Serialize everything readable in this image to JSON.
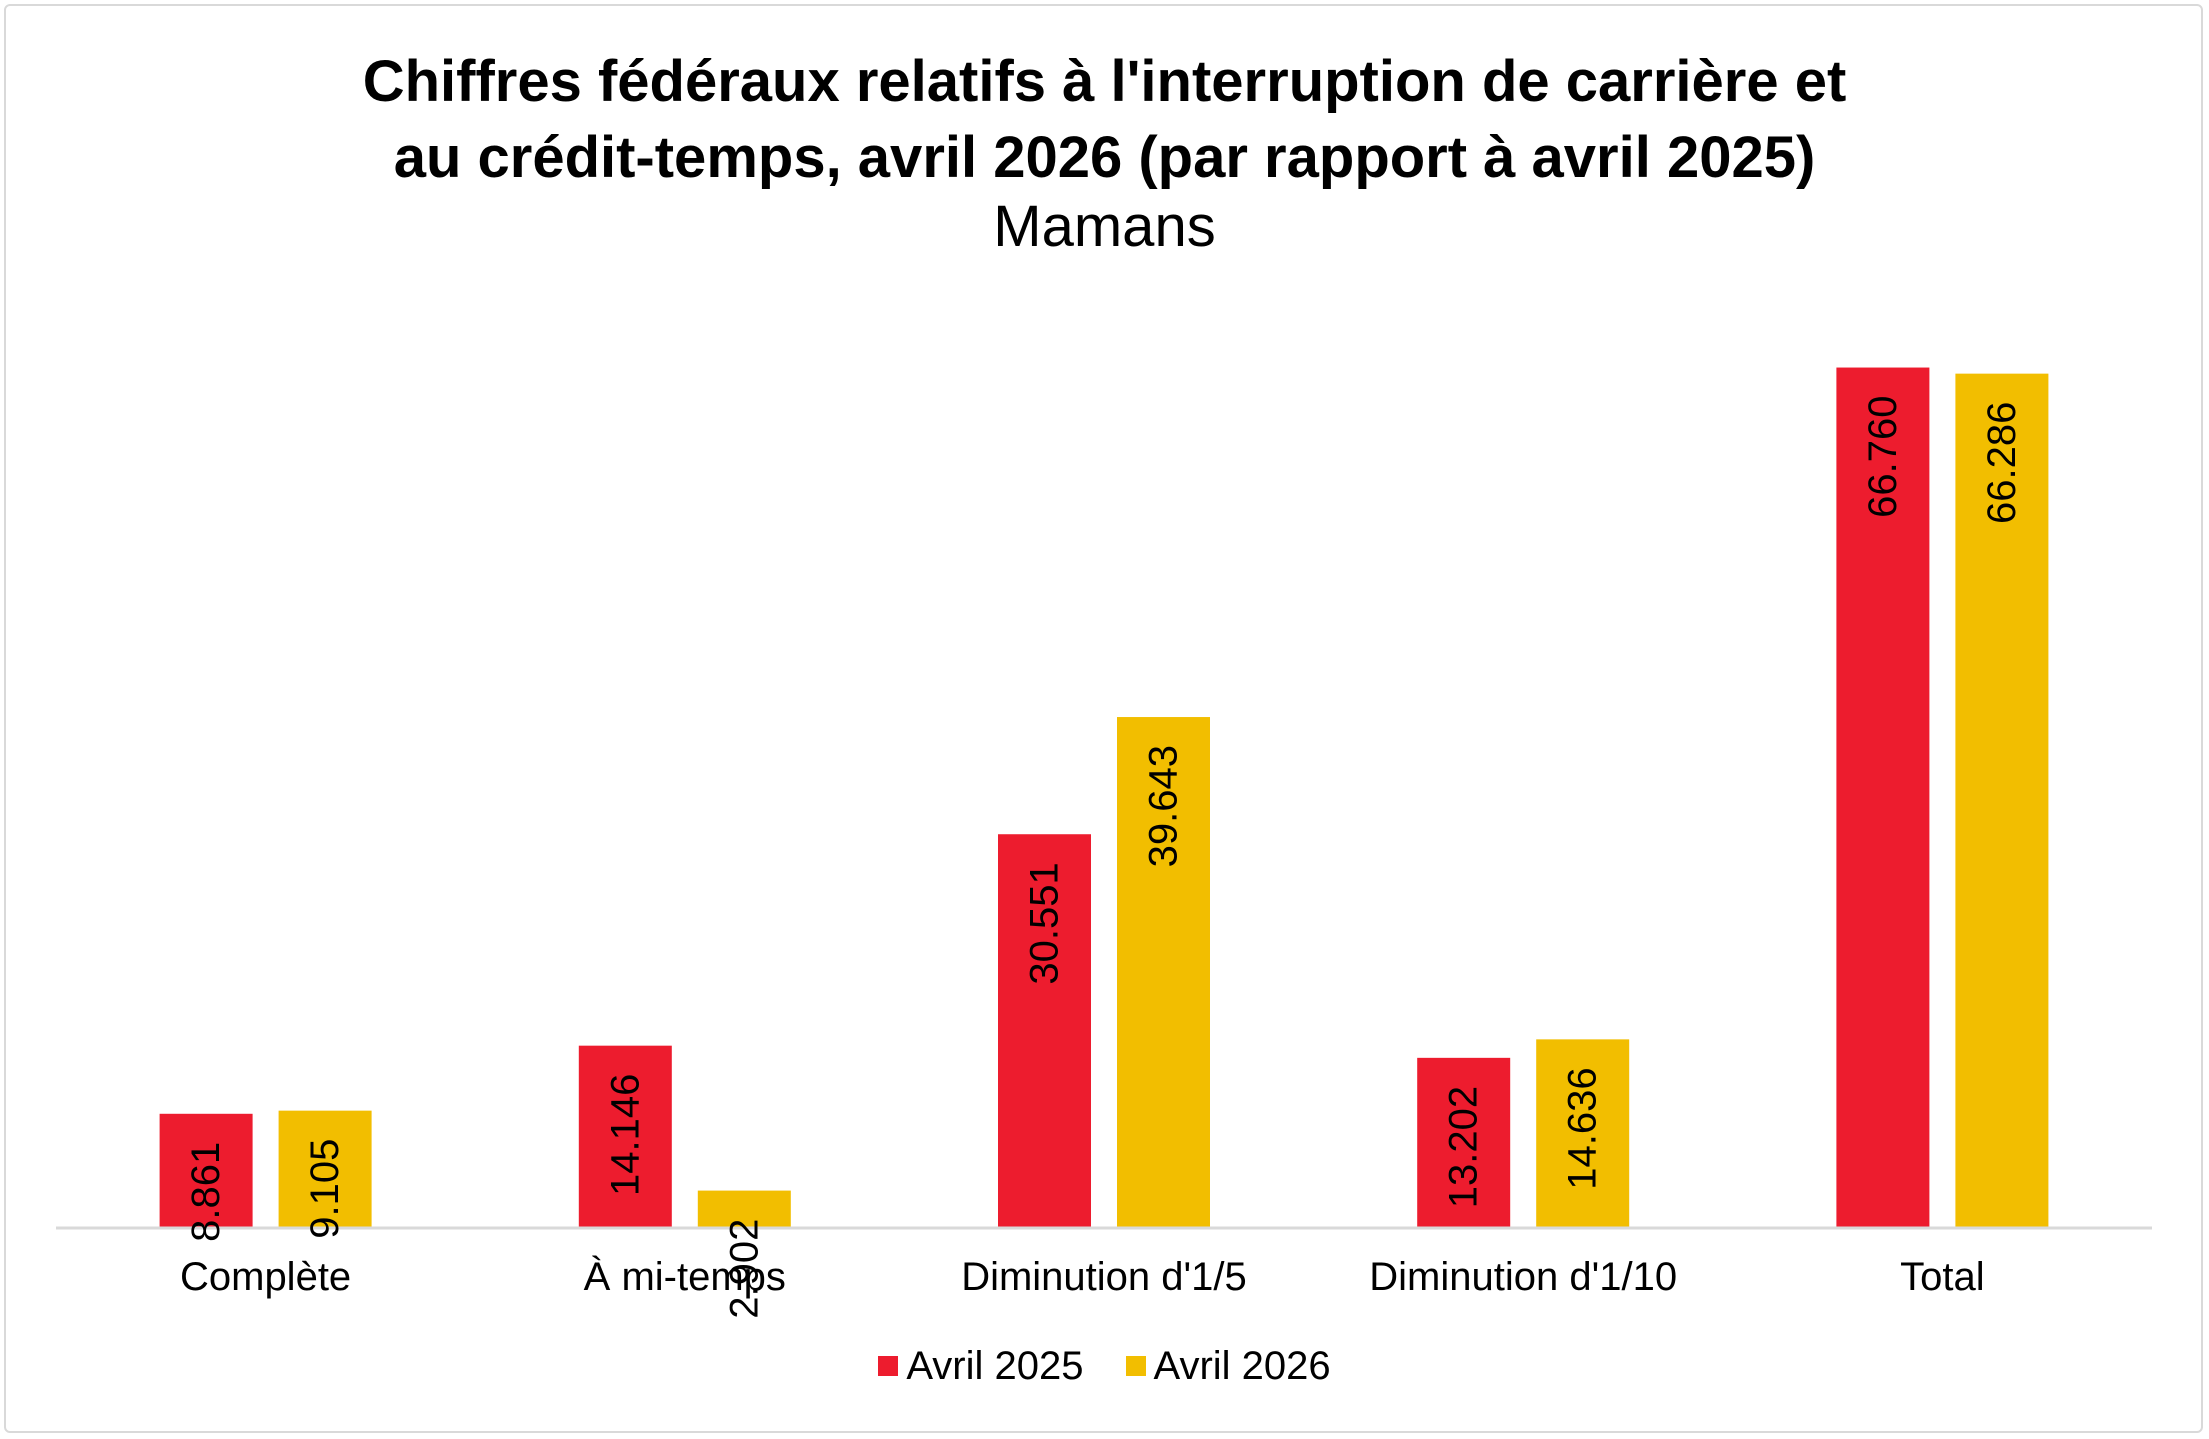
{
  "chart_data": {
    "type": "bar",
    "title_lines": [
      "Chiffres fédéraux relatifs à l'interruption de carrière et",
      "au crédit-temps, avril 2026 (par rapport à avril 2025)"
    ],
    "subtitle": "Mamans",
    "categories": [
      "Complète",
      "À mi-temps",
      "Diminution d'1/5",
      "Diminution d'1/10",
      "Total"
    ],
    "series": [
      {
        "name": "Avril 2025",
        "color": "#ed1c2e",
        "values": [
          8861,
          14146,
          30551,
          13202,
          66760
        ],
        "labels": [
          "8.861",
          "14.146",
          "30.551",
          "13.202",
          "66.760"
        ]
      },
      {
        "name": "Avril 2026",
        "color": "#f2be00",
        "values": [
          9105,
          2902,
          39643,
          14636,
          66286
        ],
        "labels": [
          "9.105",
          "2.902",
          "39.643",
          "14.636",
          "66.286"
        ]
      }
    ],
    "ylim": [
      0,
      72000
    ],
    "grid": false,
    "legend": "bottom",
    "data_labels": "inside-end-rotated"
  }
}
